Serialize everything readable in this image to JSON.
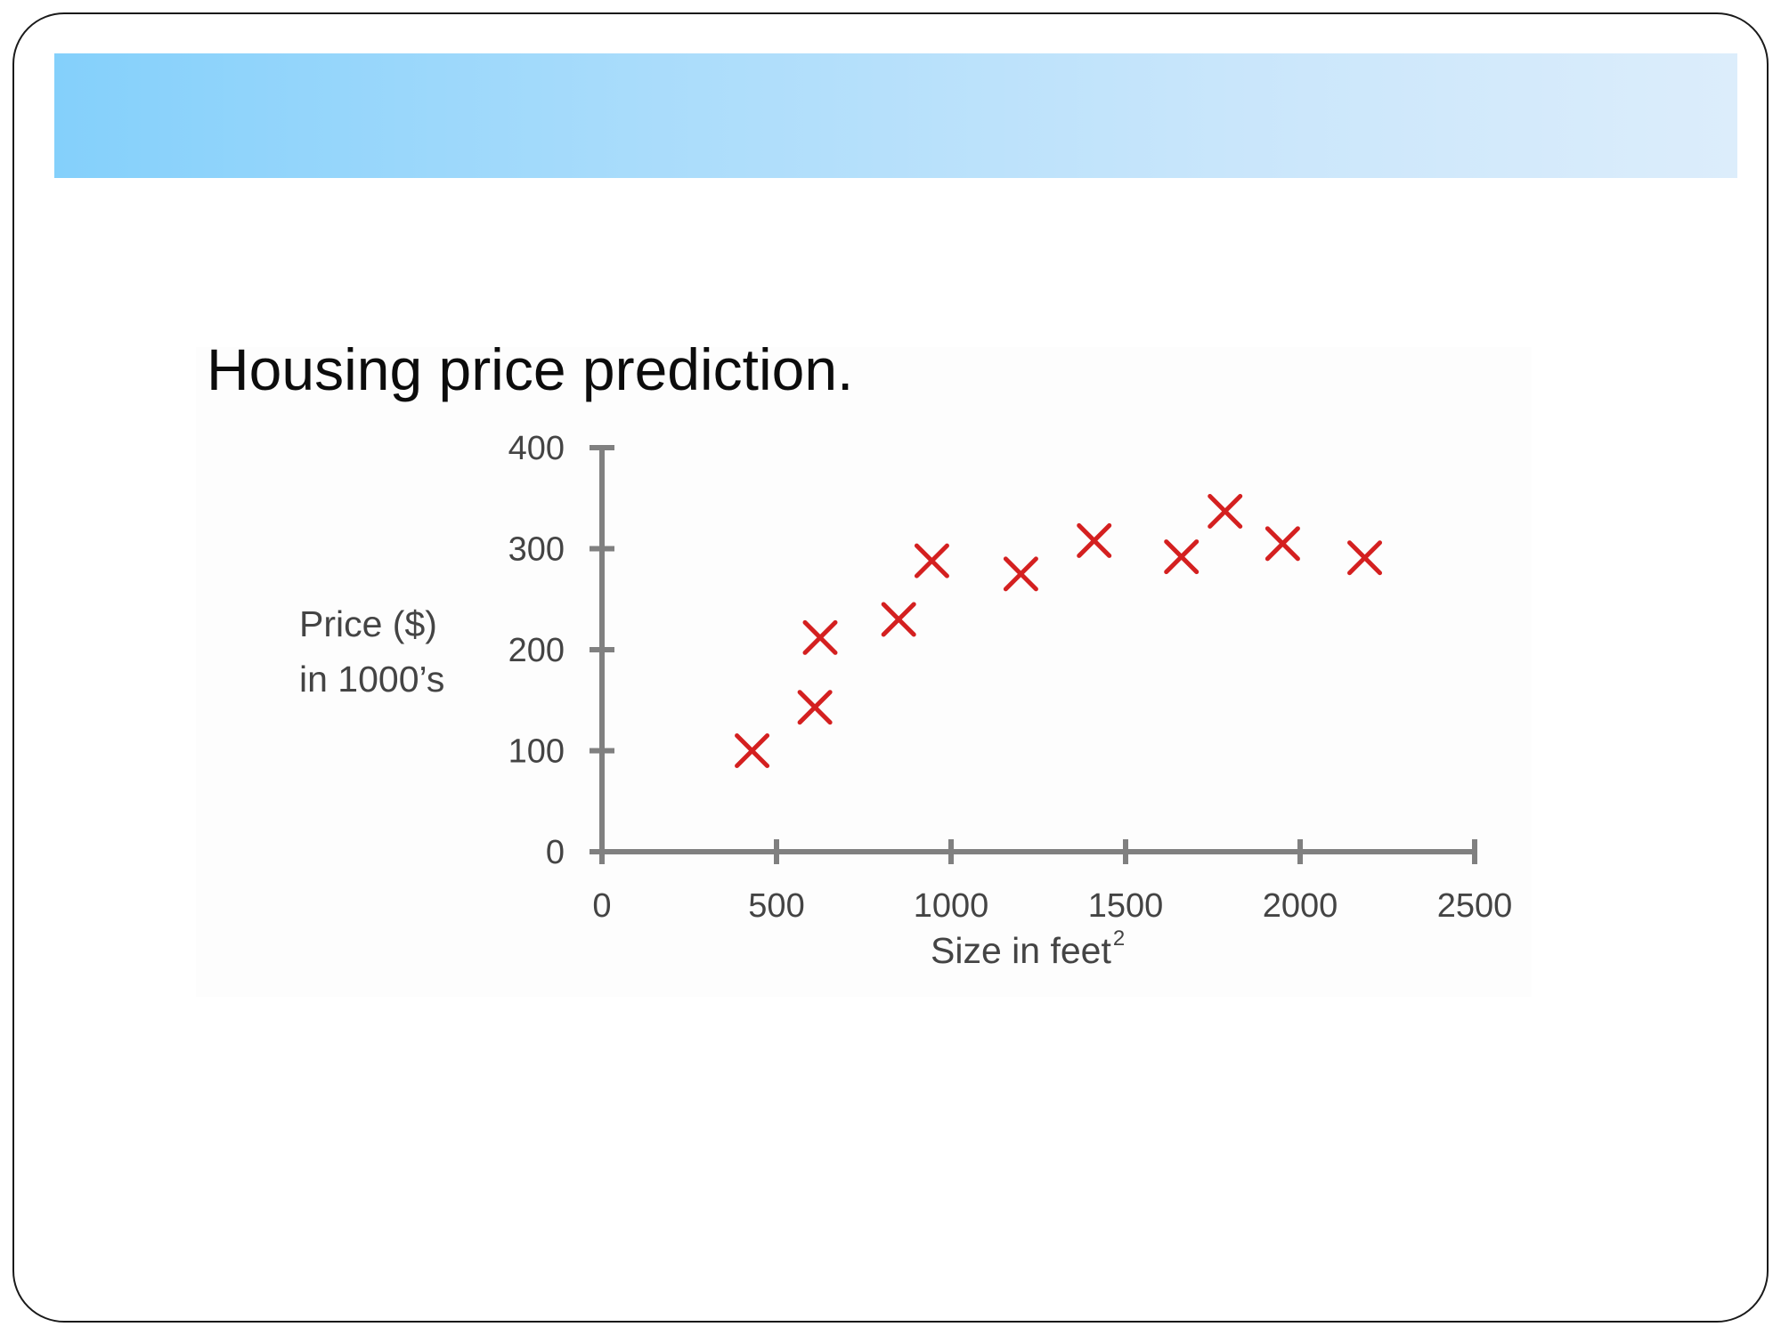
{
  "slide": {
    "title": "Housing price prediction."
  },
  "colors": {
    "header_gradient_start": "#84d0fb",
    "header_gradient_end": "#dcedfb",
    "axis": "#808080",
    "marker": "#d42020",
    "text": "#444444"
  },
  "chart_data": {
    "type": "scatter",
    "title": "Housing price prediction.",
    "xlabel": "Size in feet",
    "xlabel_superscript": "2",
    "ylabel_lines": [
      "Price ($)",
      "in 1000’s"
    ],
    "xlim": [
      0,
      2500
    ],
    "ylim": [
      0,
      400
    ],
    "xticks": [
      0,
      500,
      1000,
      1500,
      2000,
      2500
    ],
    "yticks": [
      0,
      100,
      200,
      300,
      400
    ],
    "marker": "x",
    "grid": false,
    "points": [
      {
        "x": 430,
        "y": 100
      },
      {
        "x": 610,
        "y": 143
      },
      {
        "x": 625,
        "y": 212
      },
      {
        "x": 850,
        "y": 230
      },
      {
        "x": 945,
        "y": 288
      },
      {
        "x": 1200,
        "y": 275
      },
      {
        "x": 1410,
        "y": 308
      },
      {
        "x": 1660,
        "y": 292
      },
      {
        "x": 1785,
        "y": 337
      },
      {
        "x": 1950,
        "y": 305
      },
      {
        "x": 2185,
        "y": 291
      }
    ]
  }
}
